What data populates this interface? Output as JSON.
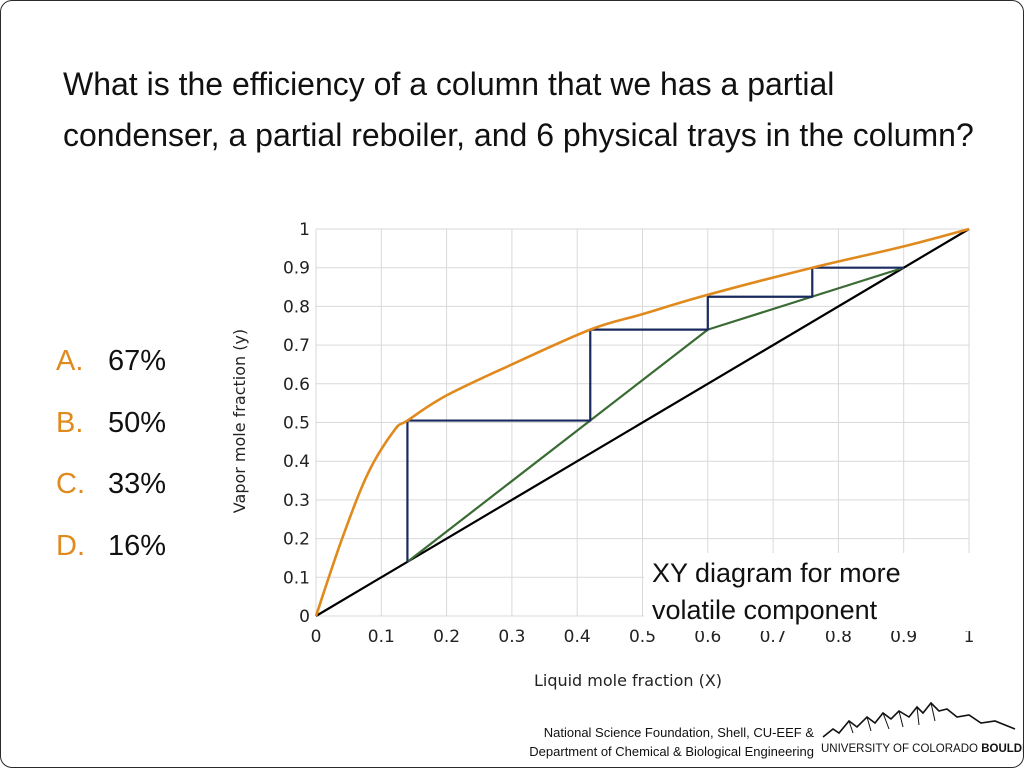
{
  "question": "What is the efficiency of a column that we has a partial condenser, a partial reboiler, and 6 physical trays in the column?",
  "choices": [
    {
      "letter": "A.",
      "text": "67%"
    },
    {
      "letter": "B.",
      "text": "50%"
    },
    {
      "letter": "C.",
      "text": "33%"
    },
    {
      "letter": "D.",
      "text": "16%"
    }
  ],
  "note": "XY diagram for more volatile component",
  "footer": {
    "line1": "National Science Foundation, Shell, CU-EEF &",
    "line2": "Department of Chemical & Biological Engineering",
    "university": "UNIVERSITY OF COLORADO",
    "campus": "BOULDER"
  },
  "colors": {
    "accent": "#e08a1e",
    "equilibrium": "#e08a1e",
    "operating": "#3b6b35",
    "steps": "#1a2a5e",
    "diagonal": "#000000"
  },
  "chart_data": {
    "type": "line",
    "xlabel": "Liquid mole fraction (X)",
    "ylabel": "Vapor mole fraction (y)",
    "xlim": [
      0,
      1
    ],
    "ylim": [
      0,
      1
    ],
    "x_ticks": [
      0,
      0.1,
      0.2,
      0.3,
      0.4,
      0.5,
      0.6,
      0.7,
      0.8,
      0.9,
      1
    ],
    "y_ticks": [
      0,
      0.1,
      0.2,
      0.3,
      0.4,
      0.5,
      0.6,
      0.7,
      0.8,
      0.9,
      1
    ],
    "x_tick_labels": [
      "0",
      "0.1",
      "0.2",
      "0.3",
      "0.4",
      "0.5",
      "0.6",
      "0.7",
      "0.8",
      "0.9",
      "1"
    ],
    "y_tick_labels": [
      "0",
      "0.1",
      "0.2",
      "0.3",
      "0.4",
      "0.5",
      "0.6",
      "0.7",
      "0.8",
      "0.9",
      "1"
    ],
    "grid": true,
    "series": [
      {
        "role": "equilibrium",
        "x": [
          0,
          0.04,
          0.08,
          0.12,
          0.14,
          0.2,
          0.3,
          0.42,
          0.5,
          0.6,
          0.76,
          0.9,
          1.0
        ],
        "y": [
          0,
          0.2,
          0.37,
          0.48,
          0.505,
          0.57,
          0.65,
          0.74,
          0.78,
          0.83,
          0.9,
          0.955,
          1.0
        ]
      },
      {
        "role": "operating",
        "x": [
          0.14,
          0.6,
          0.9
        ],
        "y": [
          0.14,
          0.74,
          0.9
        ]
      },
      {
        "role": "diagonal",
        "x": [
          0,
          1
        ],
        "y": [
          0,
          1
        ]
      },
      {
        "role": "steps",
        "x": [
          0.9,
          0.76,
          0.76,
          0.6,
          0.6,
          0.42,
          0.42,
          0.14,
          0.14
        ],
        "y": [
          0.9,
          0.9,
          0.825,
          0.825,
          0.74,
          0.74,
          0.505,
          0.505,
          0.14
        ]
      }
    ]
  }
}
